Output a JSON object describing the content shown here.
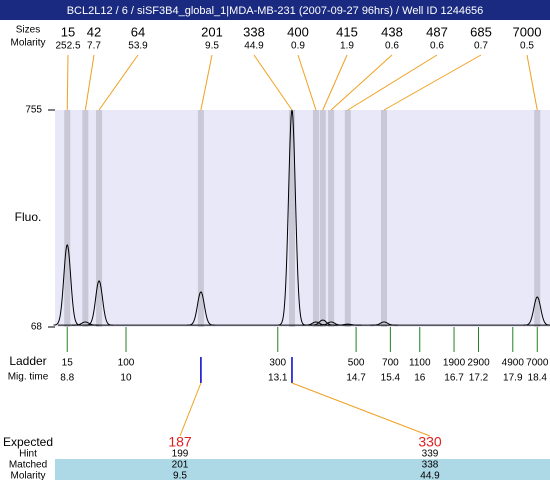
{
  "chart_data": {
    "type": "electropherogram",
    "title": "BCL2L12 / 6 / siSF3B4_global_1|MDA-MB-231 (2007-09-27 96hrs) / Well ID 1244656",
    "y_label": "Fluo.",
    "ylim": [
      68,
      755
    ],
    "yticks": [
      68,
      755
    ],
    "xlim": [
      8.55,
      18.66
    ],
    "baseline": 74,
    "color": "#000000",
    "peaks": {
      "label_sizes": "Sizes",
      "label_molarity": "Molarity",
      "sizes": [
        15,
        42,
        64,
        201,
        338,
        400,
        415,
        438,
        487,
        685,
        7000
      ],
      "molarity": [
        252.5,
        7.7,
        53.9,
        9.5,
        44.9,
        0.9,
        1.9,
        0.6,
        0.6,
        0.7,
        0.5
      ],
      "mig_time": [
        8.8,
        9.17,
        9.45,
        11.53,
        13.39,
        13.88,
        14.02,
        14.19,
        14.53,
        15.27,
        18.4
      ],
      "height": [
        328,
        84,
        214,
        179,
        755,
        84,
        90,
        84,
        77,
        84,
        163
      ]
    },
    "ladder": {
      "label": "Ladder",
      "label_time": "Mig. time",
      "sizes": [
        15,
        100,
        300,
        500,
        700,
        1100,
        1900,
        2900,
        4900,
        7000
      ],
      "mig_time": [
        8.8,
        10,
        13.1,
        14.7,
        15.4,
        16,
        16.7,
        17.2,
        17.9,
        18.4
      ]
    },
    "expected": {
      "labels": {
        "expected": "Expected",
        "hint": "Hint",
        "matched": "Matched",
        "molarity": "Molarity"
      },
      "columns": [
        {
          "expected": 187,
          "hint": 199,
          "matched": 201,
          "molarity": 9.5
        },
        {
          "expected": 330,
          "hint": 339,
          "matched": 338,
          "molarity": 44.9
        }
      ]
    }
  }
}
